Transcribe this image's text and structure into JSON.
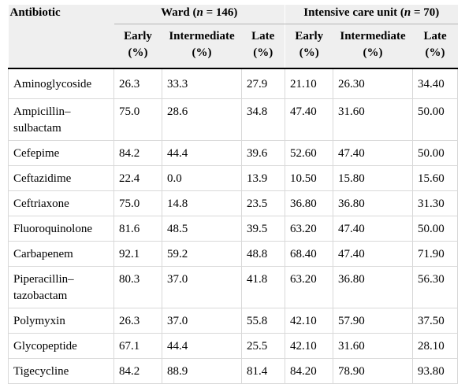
{
  "table": {
    "header_antibiotic": "Antibiotic",
    "groups": [
      {
        "prefix": "Ward (",
        "n": "n",
        "suffix": " = 146)"
      },
      {
        "prefix": "Intensive care unit (",
        "n": "n",
        "suffix": " = 70)"
      }
    ],
    "subheaders": [
      {
        "label": "Early",
        "unit": "(%)"
      },
      {
        "label": "Intermediate",
        "unit": "(%)"
      },
      {
        "label": "Late",
        "unit": "(%)"
      },
      {
        "label": "Early",
        "unit": "(%)"
      },
      {
        "label": "Intermediate",
        "unit": "(%)"
      },
      {
        "label": "Late",
        "unit": "(%)"
      }
    ],
    "rows": [
      {
        "name_1": "Aminoglycoside",
        "name_2": "",
        "values": [
          "26.3",
          "33.3",
          "27.9",
          "21.10",
          "26.30",
          "34.40"
        ]
      },
      {
        "name_1": "Ampicillin–",
        "name_2": "sulbactam",
        "values": [
          "75.0",
          "28.6",
          "34.8",
          "47.40",
          "31.60",
          "50.00"
        ]
      },
      {
        "name_1": "Cefepime",
        "name_2": "",
        "values": [
          "84.2",
          "44.4",
          "39.6",
          "52.60",
          "47.40",
          "50.00"
        ]
      },
      {
        "name_1": "Ceftazidime",
        "name_2": "",
        "values": [
          "22.4",
          "0.0",
          "13.9",
          "10.50",
          "15.80",
          "15.60"
        ]
      },
      {
        "name_1": "Ceftriaxone",
        "name_2": "",
        "values": [
          "75.0",
          "14.8",
          "23.5",
          "36.80",
          "36.80",
          "31.30"
        ]
      },
      {
        "name_1": "Fluoroquinolone",
        "name_2": "",
        "values": [
          "81.6",
          "48.5",
          "39.5",
          "63.20",
          "47.40",
          "50.00"
        ]
      },
      {
        "name_1": "Carbapenem",
        "name_2": "",
        "values": [
          "92.1",
          "59.2",
          "48.8",
          "68.40",
          "47.40",
          "71.90"
        ]
      },
      {
        "name_1": "Piperacillin–",
        "name_2": "tazobactam",
        "values": [
          "80.3",
          "37.0",
          "41.8",
          "63.20",
          "36.80",
          "56.30"
        ]
      },
      {
        "name_1": "Polymyxin",
        "name_2": "",
        "values": [
          "26.3",
          "37.0",
          "55.8",
          "42.10",
          "57.90",
          "37.50"
        ]
      },
      {
        "name_1": "Glycopeptide",
        "name_2": "",
        "values": [
          "67.1",
          "44.4",
          "25.5",
          "42.10",
          "31.60",
          "28.10"
        ]
      },
      {
        "name_1": "Tigecycline",
        "name_2": "",
        "values": [
          "84.2",
          "88.9",
          "81.4",
          "84.20",
          "78.90",
          "93.80"
        ]
      }
    ]
  }
}
